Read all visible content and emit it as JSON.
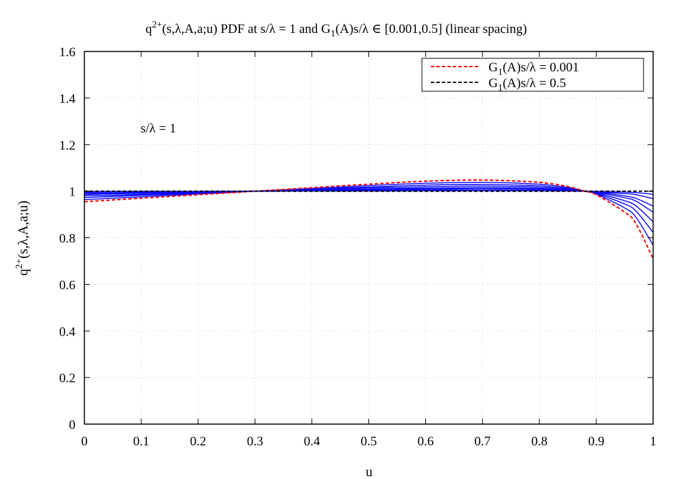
{
  "chart_data": {
    "type": "line",
    "title": {
      "pre": "q",
      "sup": "2+",
      "mid": "(s,λ,A,a;u) PDF at s/λ = 1 and G",
      "sub": "1",
      "post": "(A)s/λ ∈ [0.001,0.5] (linear spacing)"
    },
    "xlabel": "u",
    "ylabel": {
      "pre": "q",
      "sup": "2+",
      "post": "(s,λ,A,a;u)"
    },
    "xlim": [
      0,
      1
    ],
    "ylim": [
      0,
      1.6
    ],
    "xticks": [
      "0",
      "0.1",
      "0.2",
      "0.3",
      "0.4",
      "0.5",
      "0.6",
      "0.7",
      "0.8",
      "0.9",
      "1"
    ],
    "yticks": [
      "0",
      "0.2",
      "0.4",
      "0.6",
      "0.8",
      "1",
      "1.2",
      "1.4",
      "1.6"
    ],
    "grid": true,
    "legend_position": "top-right",
    "annotation": "s/λ = 1",
    "x": [
      0,
      0.1,
      0.2,
      0.3,
      0.4,
      0.5,
      0.6,
      0.7,
      0.8,
      0.85,
      0.88,
      0.9,
      0.95,
      0.97,
      1.0
    ],
    "series": [
      {
        "legend": {
          "pre": "G",
          "sub": "1",
          "post": "(A)s/λ = 0.001"
        },
        "color": "#ff0000",
        "dash": true,
        "values": [
          0.955,
          0.97,
          0.985,
          1,
          1.015,
          1.03,
          1.043,
          1.048,
          1.038,
          1.02,
          1,
          0.985,
          0.91,
          0.86,
          0.71
        ]
      },
      {
        "color": "#0000ff",
        "values": [
          0.964,
          0.976,
          0.988,
          1,
          1.012,
          1.024,
          1.034,
          1.038,
          1.03,
          1.016,
          1,
          0.988,
          0.928,
          0.888,
          0.768
        ]
      },
      {
        "color": "#0000ff",
        "values": [
          0.973,
          0.982,
          0.991,
          1,
          1.009,
          1.018,
          1.026,
          1.029,
          1.023,
          1.012,
          1,
          0.991,
          0.945,
          0.915,
          0.823
        ]
      },
      {
        "color": "#0000ff",
        "values": [
          0.98,
          0.986,
          0.993,
          1,
          1.007,
          1.014,
          1.019,
          1.022,
          1.017,
          1.009,
          1,
          0.993,
          0.959,
          0.937,
          0.869
        ]
      },
      {
        "color": "#0000ff",
        "values": [
          0.986,
          0.991,
          0.995,
          1,
          1.005,
          1.009,
          1.013,
          1.015,
          1.012,
          1.006,
          1,
          0.995,
          0.972,
          0.957,
          0.91
        ]
      },
      {
        "color": "#0000ff",
        "values": [
          0.99,
          0.993,
          0.997,
          1,
          1.003,
          1.007,
          1.009,
          1.011,
          1.008,
          1.004,
          1,
          0.997,
          0.98,
          0.969,
          0.936
        ]
      },
      {
        "color": "#0000ff",
        "values": [
          0.995,
          0.997,
          0.998,
          1,
          1.002,
          1.003,
          1.005,
          1.005,
          1.004,
          1.002,
          1,
          0.998,
          0.99,
          0.985,
          0.968
        ]
      },
      {
        "color": "#0000ff",
        "values": [
          0.998,
          0.999,
          0.999,
          1,
          1.001,
          1.001,
          1.002,
          1.002,
          1.002,
          1.001,
          1,
          0.999,
          0.996,
          0.994,
          0.987
        ]
      },
      {
        "legend": {
          "pre": "G",
          "sub": "1",
          "post": "(A)s/λ = 0.5"
        },
        "color": "#000000",
        "dash": true,
        "values": [
          1,
          1,
          1,
          1,
          1,
          1,
          1,
          1,
          1,
          1,
          1,
          1,
          1,
          1,
          1
        ]
      }
    ]
  }
}
